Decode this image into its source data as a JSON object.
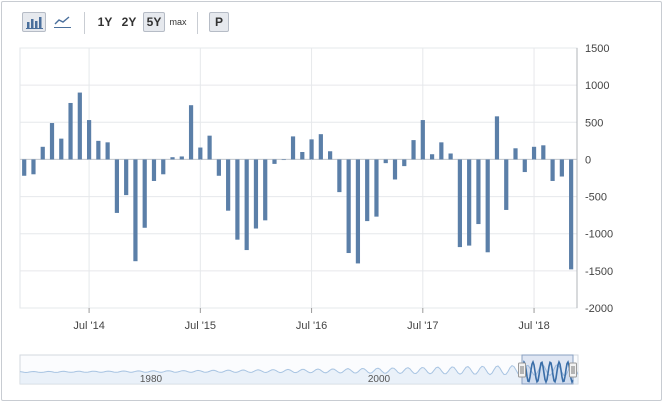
{
  "toolbar": {
    "range_buttons": [
      "1Y",
      "2Y",
      "5Y",
      "max"
    ],
    "selected_range": "5Y",
    "print_button": "P",
    "chart_type_icons": [
      "bar-chart-icon",
      "line-chart-icon"
    ]
  },
  "colors": {
    "bar": "#5b7fa8",
    "grid": "#e6e8eb",
    "axis": "#999999",
    "navigator_line": "#a8c4e2",
    "navigator_fill": "#dfe9f5",
    "navigator_selected": "#3a6ea8"
  },
  "chart_data": {
    "type": "bar",
    "ylim": [
      -2000,
      1500
    ],
    "yticks": [
      1500,
      1000,
      500,
      0,
      -500,
      -1000,
      -1500,
      -2000
    ],
    "xtick_labels": [
      "Jul '14",
      "Jul '15",
      "Jul '16",
      "Jul '17",
      "Jul '18"
    ],
    "series": [
      {
        "values": [
          -220,
          -200,
          170,
          490,
          280,
          760,
          900,
          530,
          250,
          230,
          -720,
          -480,
          -1370,
          -920,
          -290,
          -200,
          30,
          40,
          730,
          160,
          320,
          -220,
          -690,
          -1080,
          -1220,
          -930,
          -820,
          -60,
          0,
          310,
          100,
          270,
          340,
          110,
          -440,
          -1260,
          -1400,
          -830,
          -770,
          -50,
          -270,
          -90,
          260,
          530,
          70,
          230,
          80,
          -1180,
          -1160,
          -870,
          -1250,
          580,
          -680,
          150,
          -170,
          170,
          190,
          -290,
          -230,
          -1480
        ]
      }
    ]
  },
  "navigator": {
    "labels": [
      "1980",
      "2000"
    ],
    "handle_glyph": "||"
  }
}
